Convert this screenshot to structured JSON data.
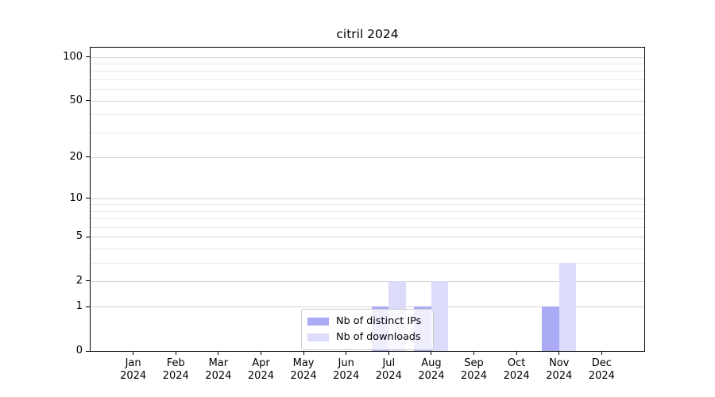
{
  "chart_data": {
    "type": "bar",
    "title": "citril 2024",
    "categories": [
      "Jan",
      "Feb",
      "Mar",
      "Apr",
      "May",
      "Jun",
      "Jul",
      "Aug",
      "Sep",
      "Oct",
      "Nov",
      "Dec"
    ],
    "x_year": "2024",
    "series": [
      {
        "name": "Nb of distinct IPs",
        "color": "#aaaaf5",
        "values": [
          0,
          0,
          0,
          0,
          0,
          0,
          1,
          1,
          0,
          0,
          1,
          0
        ]
      },
      {
        "name": "Nb of downloads",
        "color": "#dcdbfa",
        "values": [
          0,
          0,
          0,
          0,
          0,
          0,
          2,
          2,
          0,
          0,
          3,
          0
        ]
      }
    ],
    "y_axis": {
      "scale": "log1p",
      "ylim": [
        0,
        116
      ],
      "ticks": [
        0,
        1,
        2,
        5,
        10,
        20,
        50,
        100
      ],
      "minor_gridlines": [
        3,
        4,
        6,
        7,
        8,
        9,
        30,
        40,
        60,
        70,
        80,
        90
      ]
    },
    "legend": {
      "position": "lower center"
    },
    "grid": true,
    "colors": {
      "major_grid": "#d4d4d4",
      "minor_grid": "#e9e9e9",
      "spine": "#000000",
      "background": "#ffffff"
    }
  }
}
